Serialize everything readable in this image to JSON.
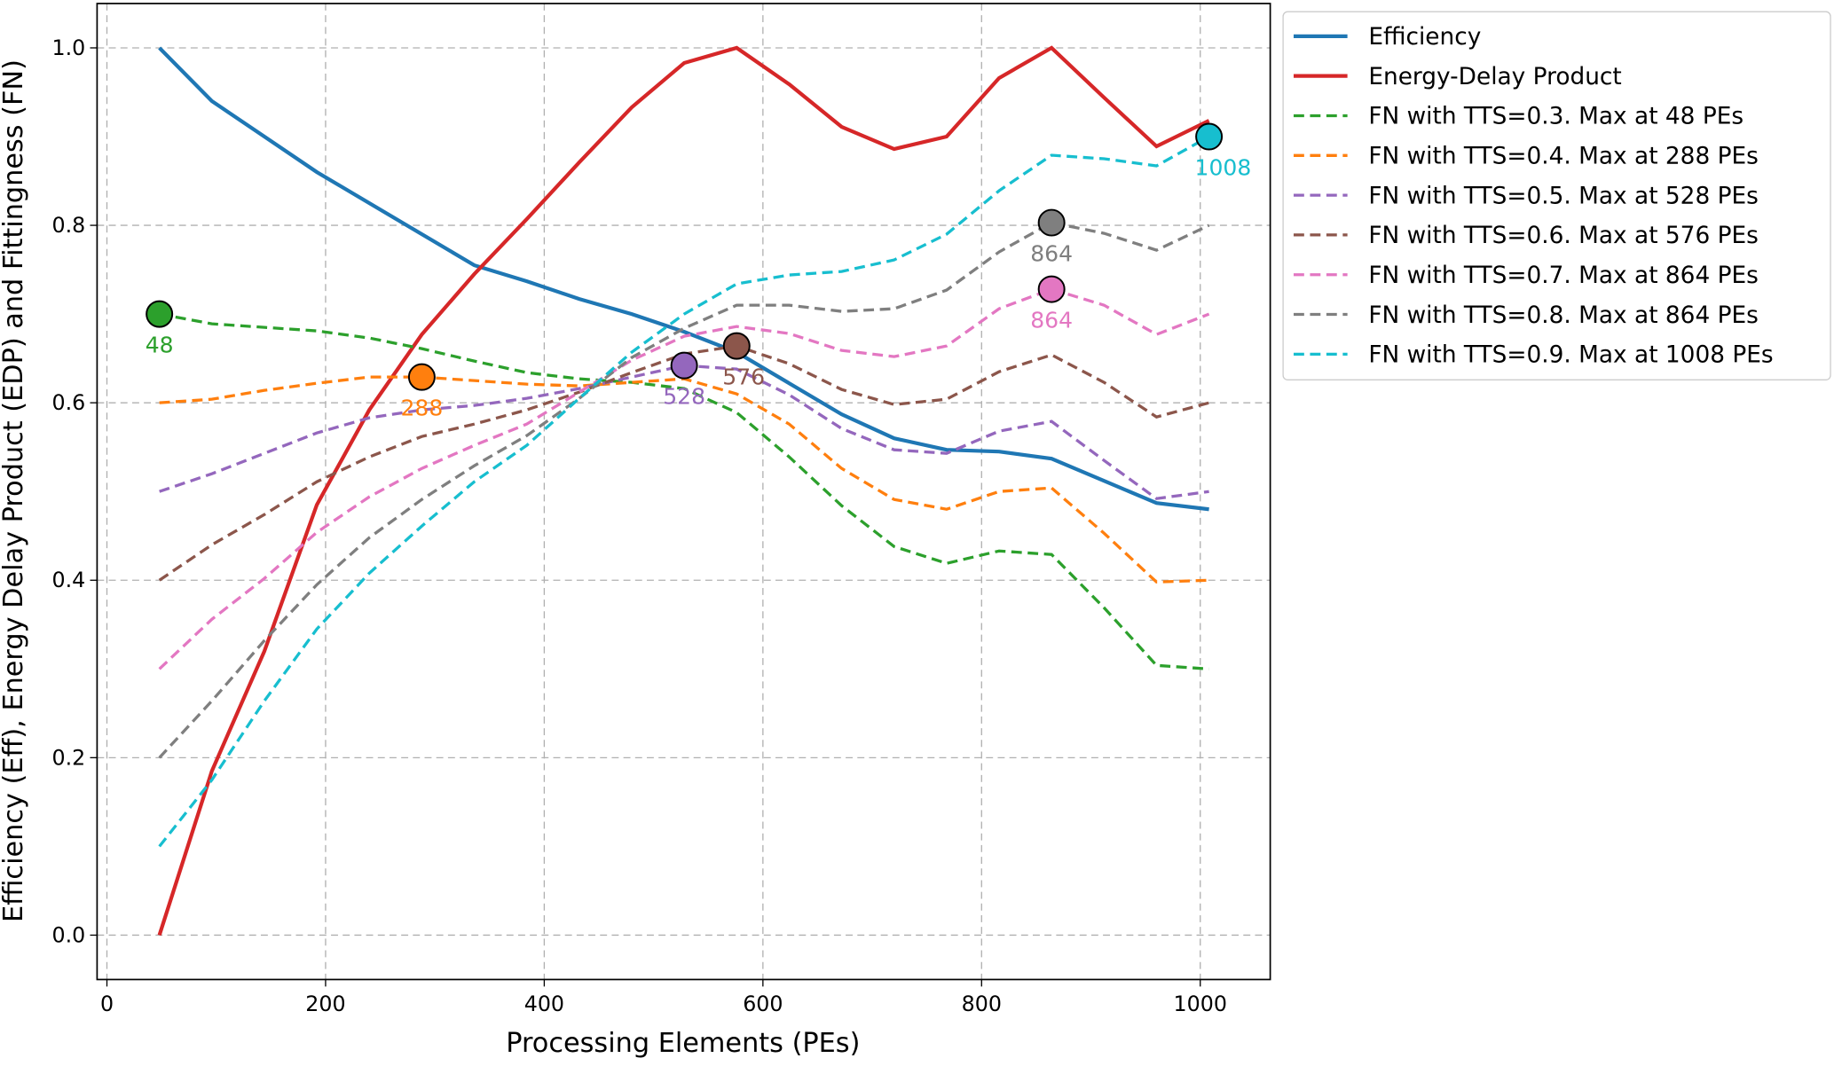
{
  "chart_data": {
    "type": "line",
    "xlabel": "Processing Elements (PEs)",
    "ylabel": "Efficiency (Eff), Energy Delay Product (EDP) and Fittingness (FN)",
    "x": [
      48,
      96,
      144,
      192,
      240,
      288,
      336,
      384,
      432,
      480,
      528,
      576,
      624,
      672,
      720,
      768,
      816,
      864,
      912,
      960,
      1008
    ],
    "xlim": [
      -9,
      1064
    ],
    "xticks": [
      0,
      200,
      400,
      600,
      800,
      1000
    ],
    "ylim": [
      -0.05,
      1.05
    ],
    "yticks": [
      {
        "value": 0,
        "label": "0.0"
      },
      0.2,
      0.4,
      0.6,
      0.8,
      {
        "value": 1,
        "label": "1.0"
      }
    ],
    "grid": true,
    "legend": "outside right",
    "series": [
      {
        "name": "Efficiency",
        "color": "#1f77b4",
        "linestyle": "solid",
        "values": [
          1.0,
          0.94,
          0.9,
          0.86,
          0.825,
          0.79,
          0.755,
          0.737,
          0.717,
          0.7,
          0.68,
          0.657,
          0.622,
          0.587,
          0.56,
          0.547,
          0.545,
          0.537,
          0.512,
          0.487,
          0.48
        ]
      },
      {
        "name": "Energy-Delay Product",
        "color": "#d62728",
        "linestyle": "solid",
        "values": [
          0.0,
          0.185,
          0.32,
          0.485,
          0.592,
          0.677,
          0.745,
          0.807,
          0.871,
          0.933,
          0.983,
          1.0,
          0.959,
          0.911,
          0.886,
          0.9,
          0.966,
          1.0,
          0.944,
          0.889,
          0.918
        ]
      },
      {
        "name": "FN with TTS=0.3. Max at 48 PEs",
        "color": "#2ca02c",
        "linestyle": "dashed",
        "values": [
          0.7,
          0.689,
          0.685,
          0.681,
          0.673,
          0.661,
          0.647,
          0.634,
          0.627,
          0.623,
          0.616,
          0.589,
          0.539,
          0.484,
          0.438,
          0.419,
          0.433,
          0.429,
          0.369,
          0.304,
          0.3
        ],
        "max": {
          "x": 48,
          "y": 0.7
        }
      },
      {
        "name": "FN with TTS=0.4. Max at 288 PEs",
        "color": "#ff7f0e",
        "linestyle": "dashed",
        "values": [
          0.6,
          0.604,
          0.614,
          0.622,
          0.629,
          0.629,
          0.625,
          0.621,
          0.619,
          0.623,
          0.627,
          0.61,
          0.576,
          0.526,
          0.491,
          0.48,
          0.5,
          0.504,
          0.453,
          0.398,
          0.4
        ],
        "max": {
          "x": 288,
          "y": 0.629
        }
      },
      {
        "name": "FN with TTS=0.5. Max at 528 PEs",
        "color": "#9467bd",
        "linestyle": "dashed",
        "values": [
          0.5,
          0.52,
          0.543,
          0.566,
          0.583,
          0.592,
          0.597,
          0.605,
          0.616,
          0.629,
          0.642,
          0.638,
          0.609,
          0.571,
          0.547,
          0.543,
          0.568,
          0.579,
          0.535,
          0.492,
          0.5
        ],
        "max": {
          "x": 528,
          "y": 0.642
        }
      },
      {
        "name": "FN with TTS=0.6. Max at 576 PEs",
        "color": "#8c564b",
        "linestyle": "dashed",
        "values": [
          0.4,
          0.44,
          0.474,
          0.511,
          0.539,
          0.562,
          0.576,
          0.592,
          0.612,
          0.634,
          0.655,
          0.664,
          0.644,
          0.615,
          0.598,
          0.604,
          0.635,
          0.654,
          0.623,
          0.584,
          0.6
        ],
        "max": {
          "x": 576,
          "y": 0.664
        }
      },
      {
        "name": "FN with TTS=0.7. Max at 864 PEs",
        "color": "#e377c2",
        "linestyle": "dashed",
        "values": [
          0.3,
          0.356,
          0.402,
          0.454,
          0.494,
          0.526,
          0.552,
          0.576,
          0.612,
          0.648,
          0.675,
          0.686,
          0.678,
          0.659,
          0.652,
          0.664,
          0.706,
          0.728,
          0.71,
          0.677,
          0.7
        ],
        "max": {
          "x": 864,
          "y": 0.728
        }
      },
      {
        "name": "FN with TTS=0.8. Max at 864 PEs",
        "color": "#7f7f7f",
        "linestyle": "dashed",
        "values": [
          0.2,
          0.264,
          0.332,
          0.395,
          0.448,
          0.491,
          0.529,
          0.563,
          0.605,
          0.651,
          0.684,
          0.71,
          0.71,
          0.703,
          0.706,
          0.727,
          0.77,
          0.803,
          0.791,
          0.772,
          0.8
        ],
        "max": {
          "x": 864,
          "y": 0.803
        }
      },
      {
        "name": "FN with TTS=0.9. Max at 1008 PEs",
        "color": "#17becf",
        "linestyle": "dashed",
        "values": [
          0.1,
          0.175,
          0.264,
          0.345,
          0.408,
          0.461,
          0.511,
          0.552,
          0.605,
          0.657,
          0.7,
          0.734,
          0.744,
          0.748,
          0.761,
          0.79,
          0.839,
          0.879,
          0.875,
          0.867,
          0.9
        ],
        "max": {
          "x": 1008,
          "y": 0.9
        }
      }
    ]
  }
}
